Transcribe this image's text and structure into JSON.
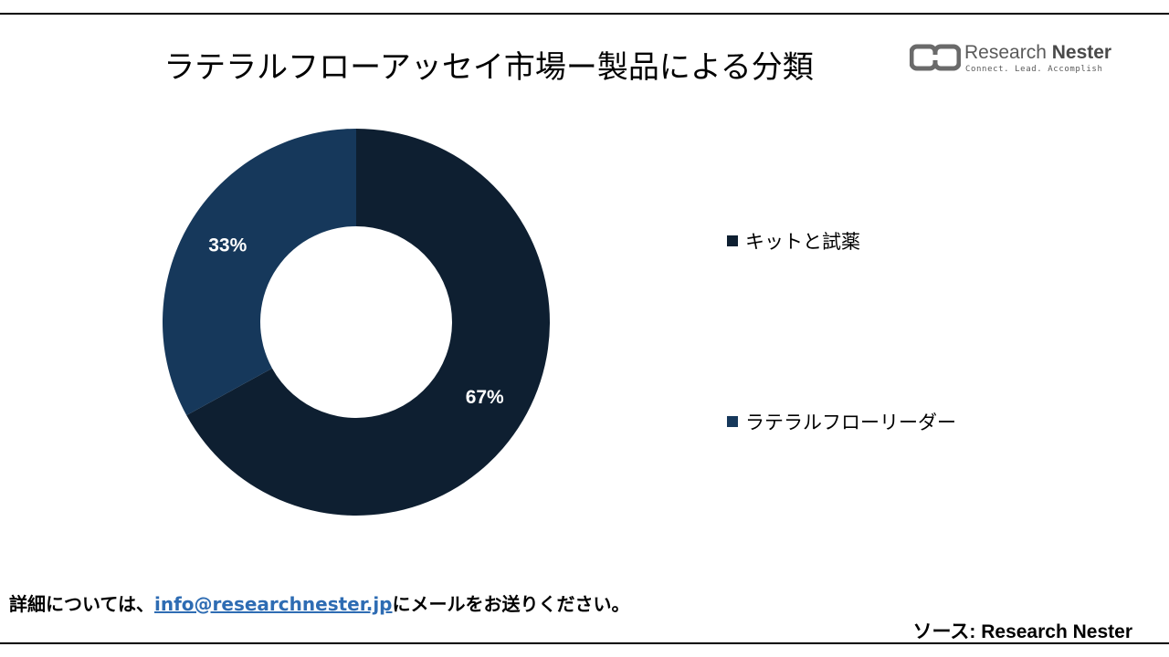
{
  "brand": {
    "name_part1": "Research ",
    "name_part2": "Nester",
    "tagline": "Connect. Lead. Accomplish"
  },
  "footer": {
    "note_prefix": "詳細については、",
    "email": "info@researchnester.jp",
    "note_suffix": "にメールをお送りください。",
    "source": "ソース: Research Nester"
  },
  "colors": {
    "kits": "#0e1f31",
    "readers": "#16385b",
    "link": "#2e6cb3"
  },
  "chart_data": {
    "type": "pie",
    "variant": "donut",
    "title": "ラテラルフローアッセイ市場ー製品による分類",
    "legend_position": "right",
    "slices": [
      {
        "label": "キットと試薬",
        "value": 67,
        "display": "67%",
        "color": "#0e1f31"
      },
      {
        "label": "ラテラルフローリーダー",
        "value": 33,
        "display": "33%",
        "color": "#16385b"
      }
    ]
  }
}
